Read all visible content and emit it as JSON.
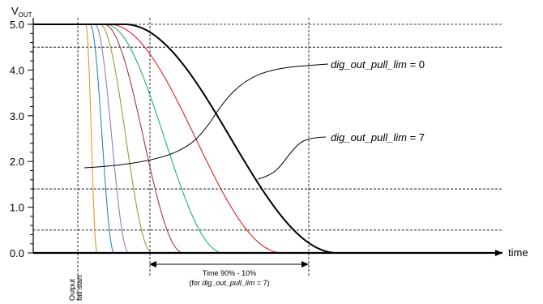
{
  "chart_data": {
    "type": "line",
    "ylabel": "V",
    "ylabel_sub": "OUT",
    "xlabel": "time",
    "y_ticks": [
      "0.0",
      "1.0",
      "2.0",
      "3.0",
      "4.0",
      "5.0"
    ],
    "ylim": [
      0,
      5
    ],
    "reference_levels_v": [
      5.0,
      4.5,
      1.4,
      0.5
    ],
    "fall_start_label_line1": "Output",
    "fall_start_label_line2": "fall start",
    "measure_label_line1": "Time 90% - 10%",
    "measure_label_line2_prefix": "(for ",
    "measure_label_line2_name": "dig_out_pull_lim",
    "measure_label_line2_suffix": " = 7)",
    "annotations": [
      {
        "name": "dig_out_pull_lim",
        "value": " = 0",
        "target_series": "dig_out_pull_lim = 0"
      },
      {
        "name": "dig_out_pull_lim",
        "value": " = 7",
        "target_series": "dig_out_pull_lim = 7"
      }
    ],
    "series": [
      {
        "name": "dig_out_pull_lim = 0",
        "color": "#e8962a",
        "fall_90": 0.8,
        "fall_10": 1.6
      },
      {
        "name": "",
        "color": "#2a86c8",
        "fall_90": 1.3,
        "fall_10": 3.0
      },
      {
        "name": "",
        "color": "#8a7fc0",
        "fall_90": 1.8,
        "fall_10": 4.2
      },
      {
        "name": "",
        "color": "#9a9a35",
        "fall_90": 2.4,
        "fall_10": 6.1
      },
      {
        "name": "",
        "color": "#a03a3a",
        "fall_90": 3.0,
        "fall_10": 8.6
      },
      {
        "name": "",
        "color": "#20b070",
        "fall_90": 3.5,
        "fall_10": 11.8
      },
      {
        "name": "",
        "color": "#e02020",
        "fall_90": 4.3,
        "fall_10": 16.5
      },
      {
        "name": "dig_out_pull_lim = 7",
        "color": "#000000",
        "fall_90": 6.0,
        "fall_10": 21.0
      }
    ],
    "grid": false,
    "legend": "annotations"
  }
}
